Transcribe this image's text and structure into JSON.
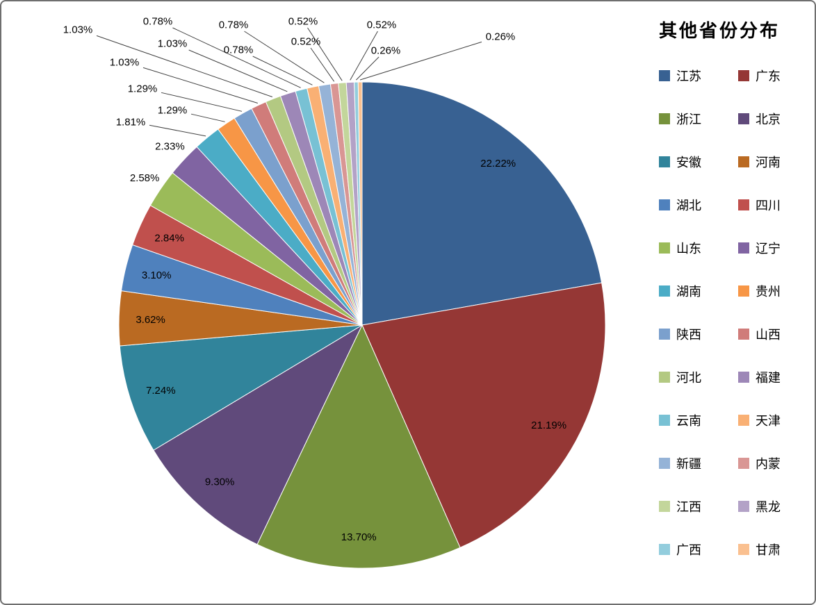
{
  "page": {
    "background": "#ffffff",
    "border_color": "#6e6e6e"
  },
  "chart_data": {
    "type": "pie",
    "title": "其他省份分布",
    "legend_position": "right",
    "start_angle_deg": 0,
    "direction": "clockwise",
    "label_color": "#000000",
    "leader_line_color": "#404040",
    "categories": [
      "江苏",
      "广东",
      "浙江",
      "北京",
      "安徽",
      "河南",
      "湖北",
      "四川",
      "山东",
      "辽宁",
      "湖南",
      "贵州",
      "陕西",
      "山西",
      "河北",
      "福建",
      "云南",
      "天津",
      "新疆",
      "内蒙",
      "江西",
      "黑龙",
      "广西",
      "甘肃"
    ],
    "values": [
      22.22,
      21.19,
      13.7,
      9.3,
      7.24,
      3.62,
      3.1,
      2.84,
      2.58,
      2.33,
      1.81,
      1.29,
      1.29,
      1.03,
      1.03,
      1.03,
      0.78,
      0.78,
      0.78,
      0.52,
      0.52,
      0.52,
      0.26,
      0.26
    ],
    "labels": [
      "22.22%",
      "21.19%",
      "13.70%",
      "9.30%",
      "7.24%",
      "3.62%",
      "3.10%",
      "2.84%",
      "2.58%",
      "2.33%",
      "1.81%",
      "1.29%",
      "1.29%",
      "1.03%",
      "1.03%",
      "1.03%",
      "0.78%",
      "0.78%",
      "0.78%",
      "0.52%",
      "0.52%",
      "0.52%",
      "0.26%",
      "0.26%"
    ],
    "colors": [
      "#386192",
      "#953735",
      "#76923C",
      "#604A7B",
      "#31849B",
      "#BA6A22",
      "#4F81BD",
      "#C0504D",
      "#9BBB59",
      "#8064A2",
      "#4BACC6",
      "#F79646",
      "#7BA0CD",
      "#D07C7A",
      "#B3C982",
      "#9D87B7",
      "#78C1D4",
      "#F9B074",
      "#95B3D7",
      "#D99694",
      "#C3D69B",
      "#B3A2C7",
      "#93CDDD",
      "#FAC090"
    ]
  }
}
